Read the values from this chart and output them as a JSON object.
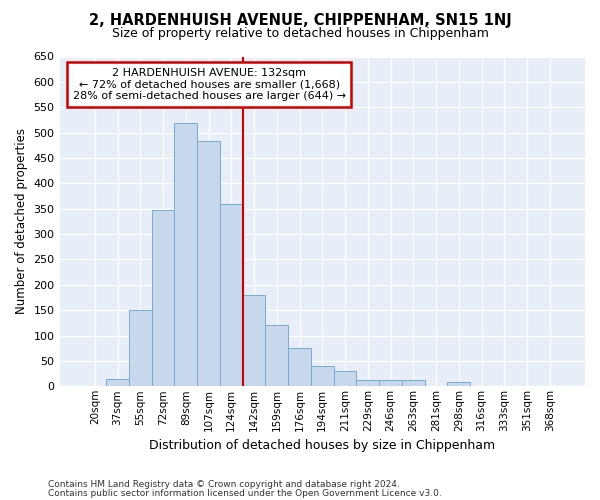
{
  "title1": "2, HARDENHUISH AVENUE, CHIPPENHAM, SN15 1NJ",
  "title2": "Size of property relative to detached houses in Chippenham",
  "xlabel": "Distribution of detached houses by size in Chippenham",
  "ylabel": "Number of detached properties",
  "categories": [
    "20sqm",
    "37sqm",
    "55sqm",
    "72sqm",
    "89sqm",
    "107sqm",
    "124sqm",
    "142sqm",
    "159sqm",
    "176sqm",
    "194sqm",
    "211sqm",
    "229sqm",
    "246sqm",
    "263sqm",
    "281sqm",
    "298sqm",
    "316sqm",
    "333sqm",
    "351sqm",
    "368sqm"
  ],
  "values": [
    0,
    14,
    150,
    347,
    518,
    483,
    360,
    180,
    120,
    75,
    40,
    30,
    13,
    13,
    13,
    0,
    8,
    0,
    0,
    0,
    0
  ],
  "bar_color": "#c8d8ec",
  "bar_edge_color": "#7aaad0",
  "vline_color": "#cc0000",
  "annotation_title": "2 HARDENHUISH AVENUE: 132sqm",
  "annotation_line1": "← 72% of detached houses are smaller (1,668)",
  "annotation_line2": "28% of semi-detached houses are larger (644) →",
  "annotation_box_color": "#ffffff",
  "annotation_box_edge": "#cc0000",
  "ylim": [
    0,
    650
  ],
  "yticks": [
    0,
    50,
    100,
    150,
    200,
    250,
    300,
    350,
    400,
    450,
    500,
    550,
    600,
    650
  ],
  "footnote1": "Contains HM Land Registry data © Crown copyright and database right 2024.",
  "footnote2": "Contains public sector information licensed under the Open Government Licence v3.0.",
  "plot_bg_color": "#e8eef8"
}
